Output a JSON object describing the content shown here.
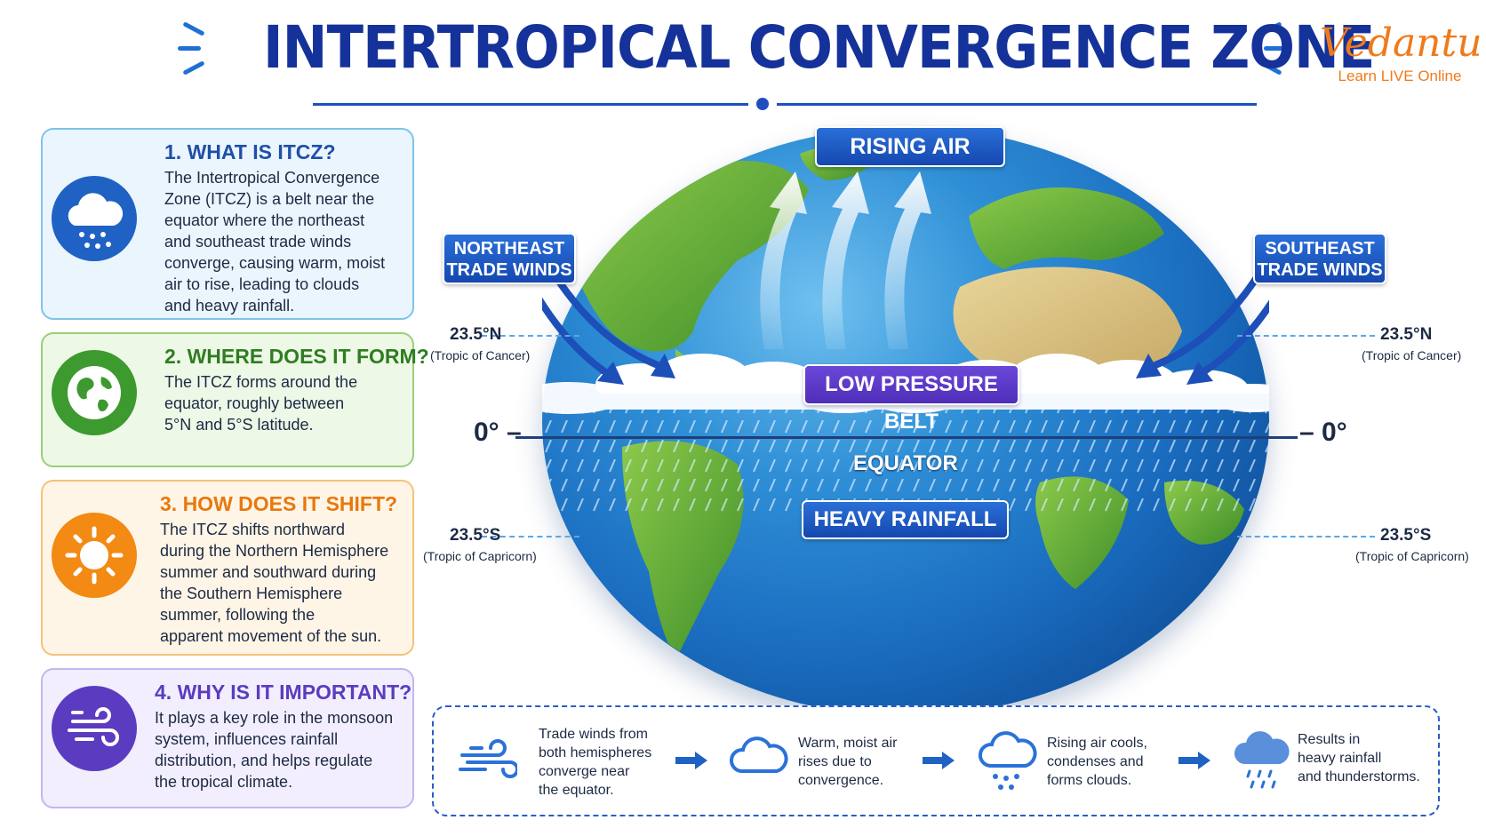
{
  "header": {
    "title": "INTERTROPICAL CONVERGENCE ZONE",
    "logo_name": "Vedantu",
    "logo_tagline": "Learn LIVE Online"
  },
  "cards": [
    {
      "heading": "1. WHAT IS ITCZ?",
      "icon": "rain-cloud-icon",
      "color": "#1f62c4",
      "lines": [
        "The Intertropical Convergence",
        "Zone (ITCZ) is a belt near the",
        "equator where the northeast",
        "and southeast trade winds",
        "converge, causing warm, moist",
        "air to rise, leading to clouds",
        "and heavy rainfall."
      ]
    },
    {
      "heading": "2. WHERE DOES IT FORM?",
      "icon": "globe-icon",
      "color": "#3d9a2e",
      "lines": [
        "The ITCZ forms around the",
        "equator, roughly between",
        "5°N and 5°S latitude."
      ]
    },
    {
      "heading": "3. HOW DOES IT SHIFT?",
      "icon": "sun-icon",
      "color": "#f28a14",
      "lines": [
        "The ITCZ shifts northward",
        "during the Northern Hemisphere",
        "summer and southward during",
        "the Southern Hemisphere",
        "summer, following the",
        "apparent movement of the sun."
      ]
    },
    {
      "heading": "4. WHY IS IT IMPORTANT?",
      "icon": "wind-icon",
      "color": "#5b3cc0",
      "lines": [
        "It plays a key role in the monsoon",
        "system, influences rainfall",
        "distribution, and helps regulate",
        "the tropical climate."
      ]
    }
  ],
  "diagram": {
    "rising_air": "RISING AIR",
    "northeast_line1": "NORTHEAST",
    "northeast_line2": "TRADE WINDS",
    "southeast_line1": "SOUTHEAST",
    "southeast_line2": "TRADE WINDS",
    "low_pressure": "LOW PRESSURE BELT",
    "equator": "EQUATOR",
    "heavy_rainfall": "HEAVY RAINFALL",
    "tropic_north": "23.5°N",
    "tropic_north_name": "(Tropic of Cancer)",
    "tropic_south": "23.5°S",
    "tropic_south_name": "(Tropic of Capricorn)",
    "zero_left": "0° –",
    "zero_right": "– 0°"
  },
  "flow": [
    {
      "icon": "wind-icon",
      "lines": [
        "Trade winds from",
        "both hemispheres",
        "converge near",
        "the equator."
      ]
    },
    {
      "icon": "cloud-icon",
      "lines": [
        "Warm, moist air",
        "rises due to",
        "convergence."
      ]
    },
    {
      "icon": "rain-cloud-outline-icon",
      "lines": [
        "Rising air cools,",
        "condenses and",
        "forms clouds."
      ]
    },
    {
      "icon": "heavy-rain-icon",
      "lines": [
        "Results in",
        "heavy rainfall",
        "and thunderstorms."
      ]
    }
  ],
  "colors": {
    "title": "#15329a",
    "accent": "#1f4fbf",
    "logo": "#f07a1a",
    "low_pressure": "#5b3cc0"
  }
}
